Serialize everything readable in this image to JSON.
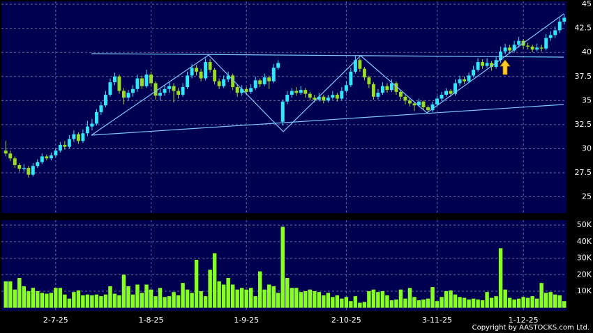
{
  "chart_data": [
    {
      "type": "candlestick",
      "up_color": "#33e6ff",
      "down_color": "#99dd22",
      "grid": true,
      "ylim": [
        23.3,
        45.3
      ],
      "yticks": [
        25,
        27.5,
        30,
        32.5,
        35,
        37.5,
        40,
        42.5,
        45
      ],
      "open": [
        29.8,
        29.5,
        29.0,
        28.3,
        27.9,
        28.0,
        27.3,
        28.2,
        28.6,
        29.2,
        29.0,
        29.3,
        29.8,
        30.4,
        30.2,
        31.0,
        31.5,
        30.8,
        31.6,
        32.3,
        32.6,
        33.8,
        34.5,
        35.6,
        36.9,
        37.5,
        36.0,
        35.3,
        35.8,
        36.2,
        37.3,
        36.5,
        37.7,
        36.8,
        35.5,
        35.8,
        36.2,
        36.5,
        36.0,
        35.6,
        36.4,
        37.6,
        38.4,
        38.0,
        37.3,
        39.0,
        38.2,
        37.0,
        36.5,
        37.2,
        37.6,
        36.4,
        35.8,
        36.2,
        35.9,
        36.3,
        37.1,
        36.7,
        37.4,
        37.0,
        38.4,
        32.8,
        34.9,
        35.6,
        36.0,
        35.8,
        36.1,
        35.7,
        35.3,
        35.1,
        35.4,
        35.0,
        35.3,
        35.6,
        35.2,
        36.0,
        36.6,
        38.0,
        39.2,
        38.3,
        37.4,
        36.7,
        35.4,
        35.8,
        36.5,
        36.1,
        36.8,
        35.9,
        35.4,
        35.0,
        34.7,
        34.5,
        34.9,
        34.3,
        34.0,
        34.6,
        35.2,
        35.6,
        36.0,
        35.7,
        36.8,
        37.2,
        37.0,
        37.6,
        38.2,
        39.0,
        38.6,
        38.9,
        38.5,
        39.2,
        40.1,
        40.5,
        40.2,
        40.8,
        41.2,
        40.7,
        40.6,
        40.3,
        40.5,
        40.4,
        41.5,
        41.8,
        42.3,
        43.2
      ],
      "high": [
        30.8,
        29.8,
        29.2,
        28.5,
        28.4,
        28.2,
        28.5,
        28.9,
        29.5,
        29.4,
        29.6,
        30.1,
        30.7,
        30.8,
        31.4,
        31.9,
        31.7,
        32.0,
        32.9,
        33.1,
        34.1,
        34.9,
        36.0,
        37.3,
        37.9,
        37.7,
        36.3,
        36.1,
        36.6,
        37.7,
        37.6,
        38.2,
        38.0,
        37.0,
        36.2,
        36.6,
        36.9,
        36.8,
        36.3,
        36.8,
        38.0,
        38.8,
        38.7,
        38.3,
        39.4,
        39.3,
        38.4,
        37.3,
        37.6,
        38.0,
        37.8,
        36.7,
        36.6,
        36.4,
        36.7,
        37.5,
        37.3,
        37.8,
        37.6,
        38.8,
        39.2,
        35.1,
        36.0,
        36.3,
        36.4,
        36.5,
        36.3,
        35.9,
        35.6,
        35.8,
        35.6,
        35.6,
        36.0,
        35.8,
        36.4,
        37.0,
        38.4,
        39.7,
        39.4,
        38.5,
        37.6,
        36.9,
        36.2,
        36.9,
        36.8,
        37.2,
        37.0,
        36.1,
        35.6,
        35.2,
        34.9,
        35.2,
        35.0,
        34.5,
        34.9,
        35.5,
        35.9,
        36.3,
        36.2,
        37.2,
        37.6,
        37.5,
        37.9,
        38.6,
        39.4,
        39.3,
        39.4,
        39.1,
        39.6,
        40.6,
        40.9,
        40.8,
        41.2,
        41.6,
        41.4,
        41.0,
        40.8,
        40.9,
        40.8,
        41.9,
        42.2,
        42.7,
        43.6,
        44.0
      ],
      "low": [
        29.2,
        28.7,
        28.0,
        27.6,
        27.6,
        27.0,
        27.1,
        28.0,
        28.4,
        28.8,
        28.8,
        29.1,
        29.6,
        29.9,
        30.0,
        30.7,
        30.5,
        30.6,
        31.3,
        31.9,
        32.4,
        33.5,
        34.3,
        35.4,
        36.6,
        35.7,
        34.6,
        35.0,
        35.4,
        35.9,
        36.2,
        36.3,
        36.5,
        35.1,
        35.0,
        35.5,
        35.8,
        34.8,
        35.2,
        35.4,
        36.2,
        37.3,
        37.6,
        37.0,
        37.1,
        37.9,
        36.7,
        36.2,
        36.3,
        36.9,
        36.1,
        35.4,
        35.5,
        35.6,
        35.7,
        36.1,
        36.4,
        36.5,
        36.2,
        36.8,
        38.2,
        32.4,
        34.6,
        35.3,
        35.5,
        35.6,
        35.3,
        35.0,
        34.8,
        34.9,
        34.7,
        34.8,
        35.1,
        34.9,
        35.0,
        35.8,
        36.4,
        37.8,
        38.0,
        37.1,
        36.3,
        35.1,
        35.1,
        35.6,
        35.8,
        35.9,
        35.6,
        35.1,
        34.6,
        34.4,
        33.9,
        34.3,
        34.0,
        33.7,
        33.8,
        34.4,
        35.0,
        35.4,
        35.4,
        35.5,
        36.5,
        36.7,
        36.8,
        37.4,
        38.0,
        38.3,
        38.4,
        38.1,
        38.3,
        38.9,
        39.8,
        39.9,
        40.0,
        40.5,
        40.4,
        40.3,
        40.0,
        40.1,
        40.1,
        40.2,
        41.2,
        41.5,
        42.0,
        42.9
      ],
      "close": [
        29.5,
        29.0,
        28.3,
        27.9,
        28.0,
        27.3,
        28.2,
        28.6,
        29.2,
        29.0,
        29.3,
        29.8,
        30.4,
        30.2,
        31.0,
        31.5,
        30.8,
        31.6,
        32.3,
        32.6,
        33.8,
        34.5,
        35.6,
        36.9,
        37.5,
        36.0,
        35.3,
        35.8,
        36.2,
        37.3,
        36.5,
        37.7,
        36.8,
        35.5,
        35.8,
        36.2,
        36.5,
        36.0,
        35.6,
        36.4,
        37.6,
        38.4,
        38.0,
        37.3,
        39.0,
        38.2,
        37.0,
        36.5,
        37.2,
        37.6,
        36.4,
        35.8,
        36.2,
        35.9,
        36.3,
        37.1,
        36.7,
        37.4,
        37.0,
        38.4,
        38.9,
        34.9,
        35.6,
        36.0,
        35.8,
        36.1,
        35.7,
        35.3,
        35.1,
        35.4,
        35.0,
        35.3,
        35.6,
        35.2,
        36.0,
        36.6,
        38.0,
        39.2,
        38.3,
        37.4,
        36.7,
        35.4,
        35.8,
        36.5,
        36.1,
        36.8,
        35.9,
        35.4,
        35.0,
        34.7,
        34.5,
        34.9,
        34.3,
        34.0,
        34.6,
        35.2,
        35.6,
        36.0,
        35.7,
        36.8,
        37.2,
        37.0,
        37.6,
        38.2,
        39.0,
        38.6,
        38.9,
        38.5,
        39.2,
        40.1,
        40.5,
        40.2,
        40.8,
        41.2,
        40.7,
        40.6,
        40.3,
        40.5,
        40.4,
        41.5,
        41.8,
        42.3,
        43.2,
        43.6
      ]
    },
    {
      "type": "bar",
      "color": "#88ff22",
      "grid": true,
      "ylim": [
        -1800,
        53000
      ],
      "yticks": [
        {
          "value": 10000,
          "label": "10K"
        },
        {
          "value": 20000,
          "label": "20K"
        },
        {
          "value": 30000,
          "label": "30K"
        },
        {
          "value": 40000,
          "label": "40K"
        },
        {
          "value": 50000,
          "label": "50K"
        }
      ],
      "categories": [
        null,
        null,
        null,
        null,
        null,
        null,
        null,
        null,
        null,
        null,
        null,
        "2-7-25",
        null,
        null,
        null,
        null,
        null,
        null,
        null,
        null,
        null,
        null,
        null,
        null,
        null,
        null,
        null,
        null,
        null,
        null,
        null,
        null,
        "1-8-25",
        null,
        null,
        null,
        null,
        null,
        null,
        null,
        null,
        null,
        null,
        null,
        null,
        null,
        null,
        null,
        null,
        null,
        null,
        null,
        null,
        "1-9-25",
        null,
        null,
        null,
        null,
        null,
        null,
        null,
        null,
        null,
        null,
        null,
        null,
        null,
        null,
        null,
        null,
        null,
        null,
        null,
        null,
        null,
        "2-10-25",
        null,
        null,
        null,
        null,
        null,
        null,
        null,
        null,
        null,
        null,
        null,
        null,
        null,
        null,
        null,
        null,
        null,
        null,
        null,
        "3-11-25",
        null,
        null,
        null,
        null,
        null,
        null,
        null,
        null,
        null,
        null,
        null,
        null,
        null,
        null,
        null,
        null,
        null,
        null,
        "1-12-25",
        null,
        null,
        null,
        null,
        null,
        null,
        null,
        null,
        null
      ],
      "values": [
        16000,
        16000,
        11000,
        18000,
        13000,
        10000,
        12000,
        10000,
        9000,
        8500,
        9000,
        12000,
        12000,
        8000,
        5500,
        9500,
        10500,
        7500,
        8000,
        7500,
        8000,
        7000,
        8000,
        13000,
        8500,
        7500,
        20000,
        13000,
        8000,
        14000,
        9000,
        14000,
        11000,
        7000,
        12000,
        6500,
        7000,
        9500,
        7500,
        15000,
        11000,
        9000,
        29000,
        10000,
        7000,
        23000,
        33000,
        16000,
        14000,
        18000,
        14000,
        11000,
        12000,
        11000,
        12000,
        7000,
        22000,
        11000,
        14000,
        13000,
        9000,
        49000,
        18000,
        12000,
        12000,
        9500,
        10000,
        11000,
        10000,
        9500,
        7500,
        9000,
        6500,
        7500,
        5500,
        6500,
        4000,
        7000,
        3000,
        3500,
        10000,
        11000,
        9500,
        10000,
        7500,
        4500,
        5000,
        11000,
        5500,
        12000,
        6500,
        4500,
        5000,
        5500,
        12500,
        4000,
        6500,
        10000,
        10500,
        8000,
        6500,
        6000,
        5000,
        5500,
        5000,
        4500,
        9500,
        6000,
        7000,
        36000,
        11000,
        6000,
        5000,
        5500,
        6500,
        6000,
        7000,
        5500,
        15000,
        9000,
        9500,
        8000,
        7500,
        4000
      ]
    }
  ],
  "copyright": "Copyright by AASTOCKS.com Ltd."
}
